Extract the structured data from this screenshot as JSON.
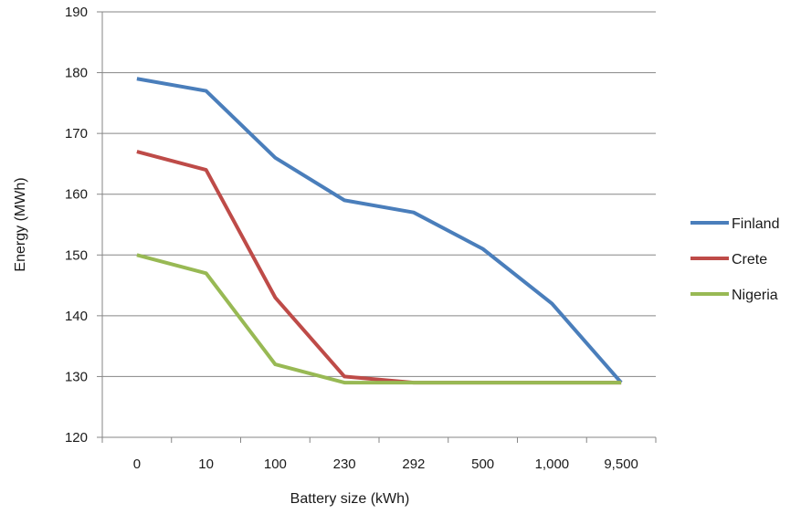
{
  "chart_data": {
    "type": "line",
    "title": "",
    "xlabel": "Battery size (kWh)",
    "ylabel": "Energy (MWh)",
    "categories": [
      "0",
      "10",
      "100",
      "230",
      "292",
      "500",
      "1,000",
      "9,500"
    ],
    "ylim": [
      120,
      190
    ],
    "yticks": [
      120,
      130,
      140,
      150,
      160,
      170,
      180,
      190
    ],
    "grid": "horizontal",
    "legend_position": "right",
    "series": [
      {
        "name": "Finland",
        "color": "#4a7ebb",
        "values": [
          179,
          177,
          166,
          159,
          157,
          151,
          142,
          129
        ]
      },
      {
        "name": "Crete",
        "color": "#be4b48",
        "values": [
          167,
          164,
          143,
          130,
          129,
          129,
          129,
          129
        ]
      },
      {
        "name": "Nigeria",
        "color": "#98b954",
        "values": [
          150,
          147,
          132,
          129,
          129,
          129,
          129,
          129
        ]
      }
    ]
  }
}
